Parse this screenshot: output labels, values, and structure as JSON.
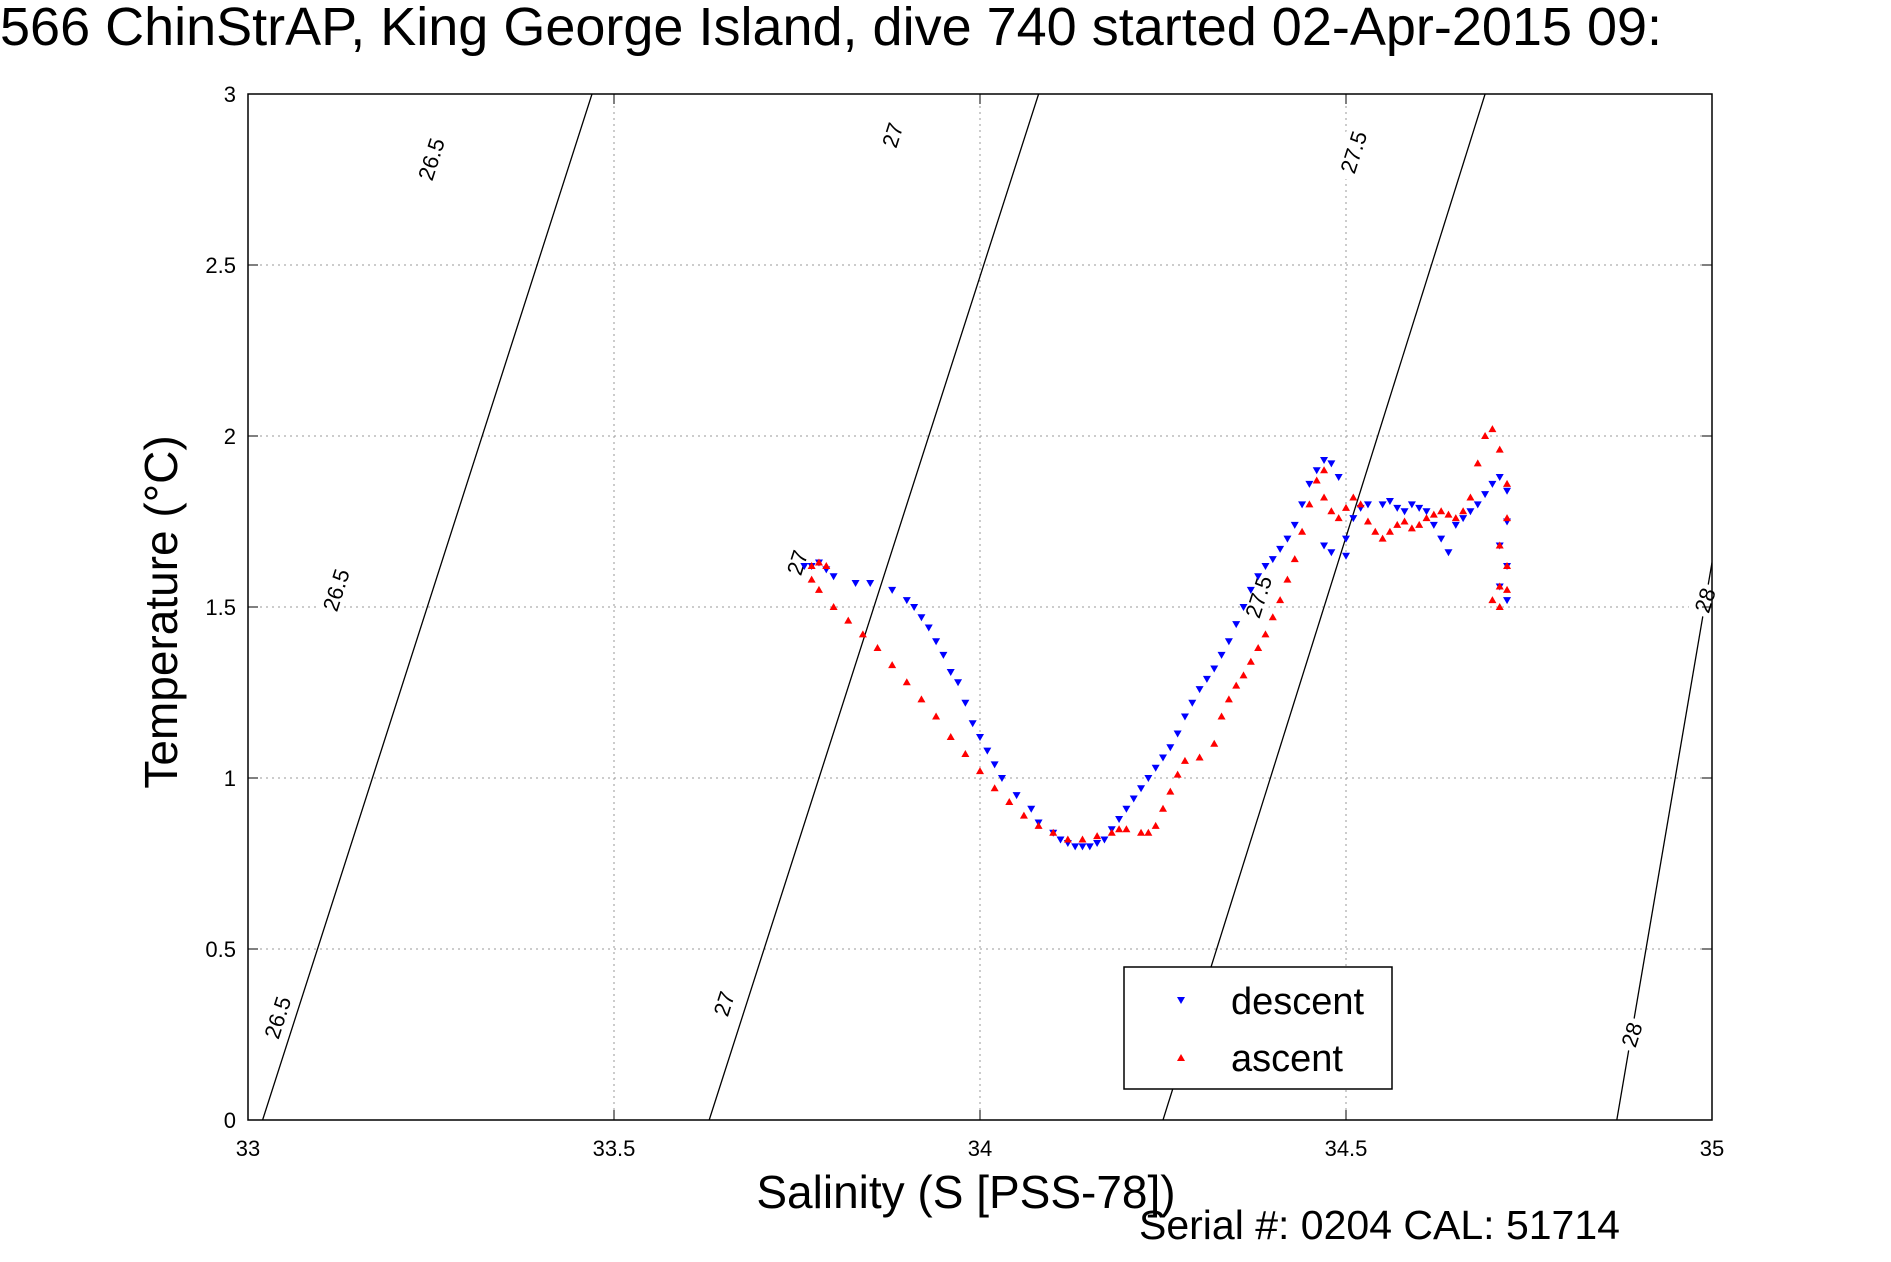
{
  "title": "566 ChinStrAP, King George Island, dive 740 started 02-Apr-2015 09:",
  "footer": "Serial #: 0204  CAL: 51714",
  "chart_data": {
    "type": "scatter",
    "xlabel": "Salinity (S [PSS-78])",
    "ylabel": "Temperature (°C)",
    "xlim": [
      33,
      35
    ],
    "ylim": [
      0,
      3
    ],
    "x_ticks": [
      33,
      33.5,
      34,
      34.5,
      35
    ],
    "x_tick_labels": [
      "33",
      "33.5",
      "34",
      "34.5",
      "35"
    ],
    "y_ticks": [
      0,
      0.5,
      1,
      1.5,
      2,
      2.5,
      3
    ],
    "y_tick_labels": [
      "0",
      "0.5",
      "1",
      "1.5",
      "2",
      "2.5",
      "3"
    ],
    "grid": true,
    "legend_position": "bottom-center",
    "density_contours": [
      {
        "label": "26.5",
        "points": [
          [
            33.02,
            0
          ],
          [
            33.47,
            3
          ]
        ]
      },
      {
        "label": "27",
        "points": [
          [
            33.63,
            0
          ],
          [
            34.08,
            3
          ]
        ]
      },
      {
        "label": "27.5",
        "points": [
          [
            34.25,
            0
          ],
          [
            34.69,
            3
          ]
        ]
      },
      {
        "label": "28",
        "points": [
          [
            34.87,
            0
          ],
          [
            35.0,
            1.63
          ]
        ]
      }
    ],
    "contour_labels": [
      {
        "text": "26.5",
        "x": 33.25,
        "y": 2.81
      },
      {
        "text": "26.5",
        "x": 33.12,
        "y": 1.55
      },
      {
        "text": "26.5",
        "x": 33.04,
        "y": 0.3
      },
      {
        "text": "27",
        "x": 33.88,
        "y": 2.88
      },
      {
        "text": "27",
        "x": 33.75,
        "y": 1.63
      },
      {
        "text": "27",
        "x": 33.65,
        "y": 0.34
      },
      {
        "text": "27.5",
        "x": 34.51,
        "y": 2.83
      },
      {
        "text": "27.5",
        "x": 34.38,
        "y": 1.53
      },
      {
        "text": "28",
        "x": 34.99,
        "y": 1.52
      },
      {
        "text": "28",
        "x": 34.89,
        "y": 0.25
      }
    ],
    "series": [
      {
        "name": "descent",
        "color": "#0000ff",
        "marker": "triangle-down",
        "points": [
          [
            33.78,
            1.63
          ],
          [
            33.77,
            1.62
          ],
          [
            33.76,
            1.62
          ],
          [
            33.79,
            1.61
          ],
          [
            33.8,
            1.59
          ],
          [
            33.83,
            1.57
          ],
          [
            33.85,
            1.57
          ],
          [
            33.88,
            1.55
          ],
          [
            33.9,
            1.52
          ],
          [
            33.91,
            1.5
          ],
          [
            33.92,
            1.47
          ],
          [
            33.93,
            1.44
          ],
          [
            33.94,
            1.4
          ],
          [
            33.95,
            1.36
          ],
          [
            33.96,
            1.31
          ],
          [
            33.97,
            1.28
          ],
          [
            33.98,
            1.22
          ],
          [
            33.99,
            1.16
          ],
          [
            34.0,
            1.12
          ],
          [
            34.01,
            1.08
          ],
          [
            34.02,
            1.04
          ],
          [
            34.03,
            1.0
          ],
          [
            34.05,
            0.95
          ],
          [
            34.07,
            0.91
          ],
          [
            34.08,
            0.87
          ],
          [
            34.1,
            0.84
          ],
          [
            34.11,
            0.82
          ],
          [
            34.12,
            0.81
          ],
          [
            34.13,
            0.8
          ],
          [
            34.14,
            0.8
          ],
          [
            34.15,
            0.8
          ],
          [
            34.16,
            0.81
          ],
          [
            34.17,
            0.82
          ],
          [
            34.18,
            0.85
          ],
          [
            34.19,
            0.88
          ],
          [
            34.2,
            0.91
          ],
          [
            34.21,
            0.94
          ],
          [
            34.22,
            0.97
          ],
          [
            34.23,
            1.0
          ],
          [
            34.24,
            1.03
          ],
          [
            34.25,
            1.06
          ],
          [
            34.26,
            1.09
          ],
          [
            34.27,
            1.13
          ],
          [
            34.28,
            1.18
          ],
          [
            34.29,
            1.22
          ],
          [
            34.3,
            1.26
          ],
          [
            34.31,
            1.29
          ],
          [
            34.32,
            1.32
          ],
          [
            34.33,
            1.36
          ],
          [
            34.34,
            1.4
          ],
          [
            34.35,
            1.45
          ],
          [
            34.36,
            1.5
          ],
          [
            34.37,
            1.55
          ],
          [
            34.38,
            1.59
          ],
          [
            34.39,
            1.62
          ],
          [
            34.4,
            1.64
          ],
          [
            34.41,
            1.67
          ],
          [
            34.42,
            1.7
          ],
          [
            34.43,
            1.74
          ],
          [
            34.44,
            1.8
          ],
          [
            34.45,
            1.86
          ],
          [
            34.46,
            1.9
          ],
          [
            34.47,
            1.93
          ],
          [
            34.48,
            1.92
          ],
          [
            34.49,
            1.88
          ],
          [
            34.47,
            1.68
          ],
          [
            34.48,
            1.66
          ],
          [
            34.5,
            1.65
          ],
          [
            34.5,
            1.7
          ],
          [
            34.51,
            1.76
          ],
          [
            34.52,
            1.79
          ],
          [
            34.53,
            1.8
          ],
          [
            34.55,
            1.8
          ],
          [
            34.56,
            1.81
          ],
          [
            34.57,
            1.79
          ],
          [
            34.58,
            1.78
          ],
          [
            34.59,
            1.8
          ],
          [
            34.6,
            1.79
          ],
          [
            34.61,
            1.78
          ],
          [
            34.62,
            1.74
          ],
          [
            34.63,
            1.7
          ],
          [
            34.64,
            1.66
          ],
          [
            34.65,
            1.74
          ],
          [
            34.66,
            1.76
          ],
          [
            34.67,
            1.78
          ],
          [
            34.68,
            1.8
          ],
          [
            34.69,
            1.83
          ],
          [
            34.7,
            1.86
          ],
          [
            34.71,
            1.88
          ],
          [
            34.72,
            1.84
          ],
          [
            34.72,
            1.75
          ],
          [
            34.71,
            1.68
          ],
          [
            34.72,
            1.62
          ],
          [
            34.71,
            1.56
          ],
          [
            34.72,
            1.52
          ]
        ]
      },
      {
        "name": "ascent",
        "color": "#ff0000",
        "marker": "triangle-up",
        "points": [
          [
            33.77,
            1.62
          ],
          [
            33.78,
            1.63
          ],
          [
            33.79,
            1.62
          ],
          [
            33.77,
            1.58
          ],
          [
            33.78,
            1.55
          ],
          [
            33.8,
            1.5
          ],
          [
            33.82,
            1.46
          ],
          [
            33.84,
            1.42
          ],
          [
            33.86,
            1.38
          ],
          [
            33.88,
            1.33
          ],
          [
            33.9,
            1.28
          ],
          [
            33.92,
            1.23
          ],
          [
            33.94,
            1.18
          ],
          [
            33.96,
            1.12
          ],
          [
            33.98,
            1.07
          ],
          [
            34.0,
            1.02
          ],
          [
            34.02,
            0.97
          ],
          [
            34.04,
            0.93
          ],
          [
            34.06,
            0.89
          ],
          [
            34.08,
            0.86
          ],
          [
            34.1,
            0.84
          ],
          [
            34.12,
            0.82
          ],
          [
            34.14,
            0.82
          ],
          [
            34.16,
            0.83
          ],
          [
            34.18,
            0.84
          ],
          [
            34.19,
            0.85
          ],
          [
            34.2,
            0.85
          ],
          [
            34.22,
            0.84
          ],
          [
            34.23,
            0.84
          ],
          [
            34.24,
            0.86
          ],
          [
            34.25,
            0.91
          ],
          [
            34.26,
            0.96
          ],
          [
            34.27,
            1.01
          ],
          [
            34.28,
            1.05
          ],
          [
            34.3,
            1.06
          ],
          [
            34.32,
            1.1
          ],
          [
            34.33,
            1.18
          ],
          [
            34.34,
            1.23
          ],
          [
            34.35,
            1.27
          ],
          [
            34.36,
            1.3
          ],
          [
            34.37,
            1.34
          ],
          [
            34.38,
            1.38
          ],
          [
            34.39,
            1.42
          ],
          [
            34.4,
            1.47
          ],
          [
            34.41,
            1.52
          ],
          [
            34.42,
            1.58
          ],
          [
            34.43,
            1.64
          ],
          [
            34.44,
            1.72
          ],
          [
            34.45,
            1.8
          ],
          [
            34.46,
            1.87
          ],
          [
            34.47,
            1.9
          ],
          [
            34.47,
            1.82
          ],
          [
            34.48,
            1.78
          ],
          [
            34.49,
            1.76
          ],
          [
            34.5,
            1.79
          ],
          [
            34.51,
            1.82
          ],
          [
            34.52,
            1.8
          ],
          [
            34.53,
            1.75
          ],
          [
            34.54,
            1.72
          ],
          [
            34.55,
            1.7
          ],
          [
            34.56,
            1.72
          ],
          [
            34.57,
            1.74
          ],
          [
            34.58,
            1.75
          ],
          [
            34.59,
            1.73
          ],
          [
            34.6,
            1.74
          ],
          [
            34.61,
            1.76
          ],
          [
            34.62,
            1.77
          ],
          [
            34.63,
            1.78
          ],
          [
            34.64,
            1.77
          ],
          [
            34.65,
            1.76
          ],
          [
            34.66,
            1.78
          ],
          [
            34.67,
            1.82
          ],
          [
            34.68,
            1.92
          ],
          [
            34.69,
            2.0
          ],
          [
            34.7,
            2.02
          ],
          [
            34.71,
            1.96
          ],
          [
            34.72,
            1.86
          ],
          [
            34.72,
            1.76
          ],
          [
            34.71,
            1.68
          ],
          [
            34.72,
            1.62
          ],
          [
            34.71,
            1.56
          ],
          [
            34.7,
            1.52
          ],
          [
            34.71,
            1.5
          ],
          [
            34.72,
            1.55
          ]
        ]
      }
    ]
  }
}
